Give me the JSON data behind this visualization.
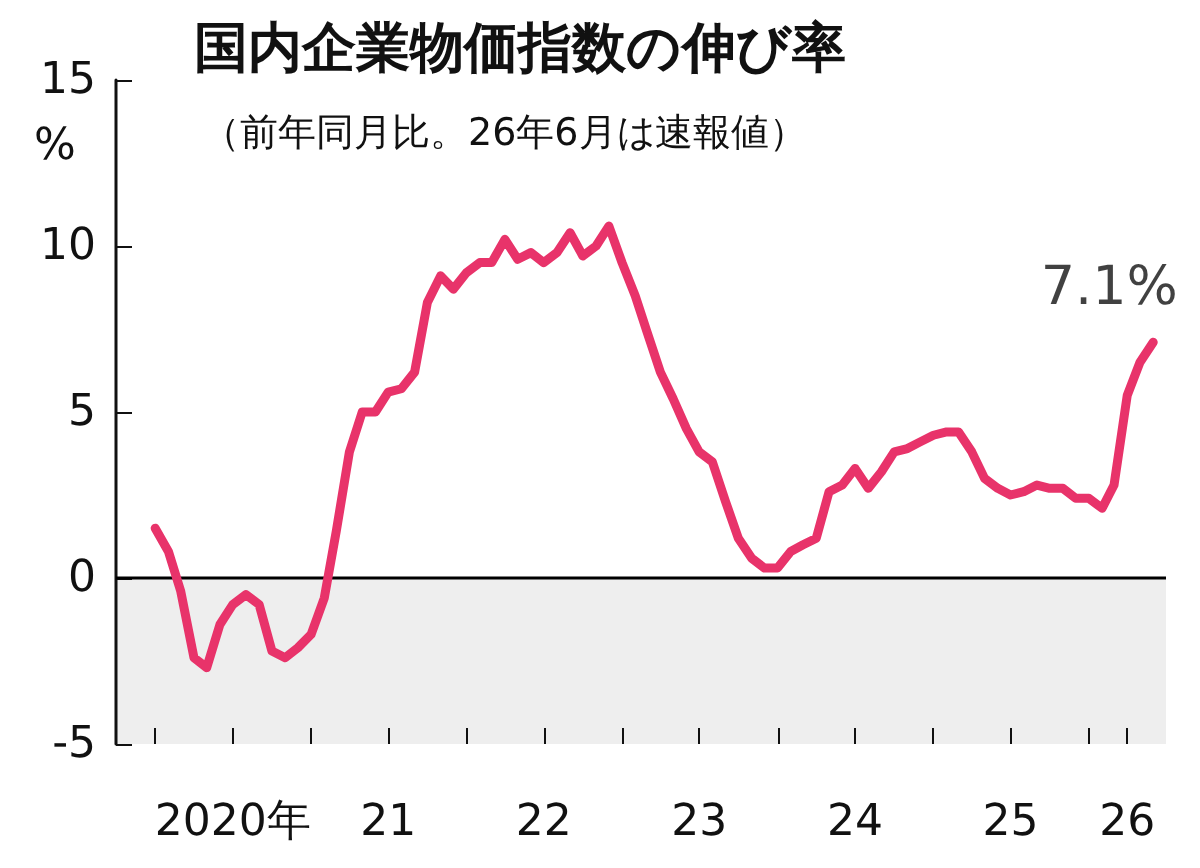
{
  "chart_data": {
    "type": "line",
    "title": "国内企業物価指数の伸び率",
    "subtitle": "（前年同月比。26年6月は速報値）",
    "ylabel": "%",
    "x": [
      "2020-01",
      "2020-02",
      "2020-03",
      "2020-04",
      "2020-05",
      "2020-06",
      "2020-07",
      "2020-08",
      "2020-09",
      "2020-10",
      "2020-11",
      "2020-12",
      "2021-01",
      "2021-02",
      "2021-03",
      "2021-04",
      "2021-05",
      "2021-06",
      "2021-07",
      "2021-08",
      "2021-09",
      "2021-10",
      "2021-11",
      "2021-12",
      "2022-01",
      "2022-02",
      "2022-03",
      "2022-04",
      "2022-05",
      "2022-06",
      "2022-07",
      "2022-08",
      "2022-09",
      "2022-10",
      "2022-11",
      "2022-12",
      "2023-01",
      "2023-02",
      "2023-03",
      "2023-04",
      "2023-05",
      "2023-06",
      "2023-07",
      "2023-08",
      "2023-09",
      "2023-10",
      "2023-11",
      "2023-12",
      "2024-01",
      "2024-02",
      "2024-03",
      "2024-04",
      "2024-05",
      "2024-06",
      "2024-07",
      "2024-08",
      "2024-09",
      "2024-10",
      "2024-11",
      "2024-12",
      "2025-01",
      "2025-02",
      "2025-03",
      "2025-04",
      "2025-05",
      "2025-06",
      "2025-07",
      "2025-08",
      "2025-09",
      "2025-10",
      "2025-11",
      "2025-12",
      "2026-01",
      "2026-02",
      "2026-03",
      "2026-04",
      "2026-05",
      "2026-06"
    ],
    "series": [
      {
        "color": "#e8336a",
        "values": [
          1.5,
          0.8,
          -0.4,
          -2.4,
          -2.7,
          -1.4,
          -0.8,
          -0.5,
          -0.8,
          -2.2,
          -2.4,
          -2.1,
          -1.7,
          -0.6,
          1.4,
          3.8,
          5.0,
          5.0,
          5.6,
          5.7,
          6.2,
          8.3,
          9.1,
          8.7,
          9.2,
          9.5,
          9.5,
          10.2,
          9.6,
          9.8,
          9.5,
          9.8,
          10.4,
          9.7,
          10.0,
          10.6,
          9.5,
          8.5,
          7.4,
          6.2,
          5.4,
          4.5,
          3.8,
          3.5,
          2.3,
          1.2,
          0.6,
          0.3,
          0.3,
          0.8,
          1.0,
          1.2,
          2.6,
          2.8,
          3.3,
          2.7,
          3.2,
          3.8,
          3.9,
          4.1,
          4.3,
          4.4,
          4.4,
          3.8,
          3.0,
          2.7,
          2.5,
          2.6,
          2.8,
          2.7,
          2.7,
          2.4,
          2.4,
          2.1,
          2.8,
          5.5,
          6.5,
          7.1
        ]
      }
    ],
    "annotations": [
      {
        "text": "7.1%",
        "x": "2026-06",
        "y": 7.1
      }
    ],
    "xlim": [
      "2019-10",
      "2026-07"
    ],
    "xticks": [
      {
        "value": "2020-01",
        "label": null
      },
      {
        "value": "2020-07",
        "label": "2020年"
      },
      {
        "value": "2021-01",
        "label": null
      },
      {
        "value": "2021-07",
        "label": "21"
      },
      {
        "value": "2022-01",
        "label": null
      },
      {
        "value": "2022-07",
        "label": "22"
      },
      {
        "value": "2023-01",
        "label": null
      },
      {
        "value": "2023-07",
        "label": "23"
      },
      {
        "value": "2024-01",
        "label": null
      },
      {
        "value": "2024-07",
        "label": "24"
      },
      {
        "value": "2025-01",
        "label": null
      },
      {
        "value": "2025-07",
        "label": "25"
      },
      {
        "value": "2026-01",
        "label": null
      },
      {
        "value": "2026-04",
        "label": "26"
      }
    ],
    "ylim": [
      -5,
      15
    ],
    "yticks": [
      -5,
      0,
      5,
      10,
      15
    ],
    "ref_lines": [
      {
        "axis": "y",
        "value": 0,
        "color": "#000000",
        "line_style": "solid"
      }
    ],
    "bands": [
      {
        "axis": "y",
        "from": -5,
        "to": 0,
        "color": "#eeeeee"
      }
    ],
    "grid": false,
    "marker": "none",
    "line_style": "solid"
  }
}
